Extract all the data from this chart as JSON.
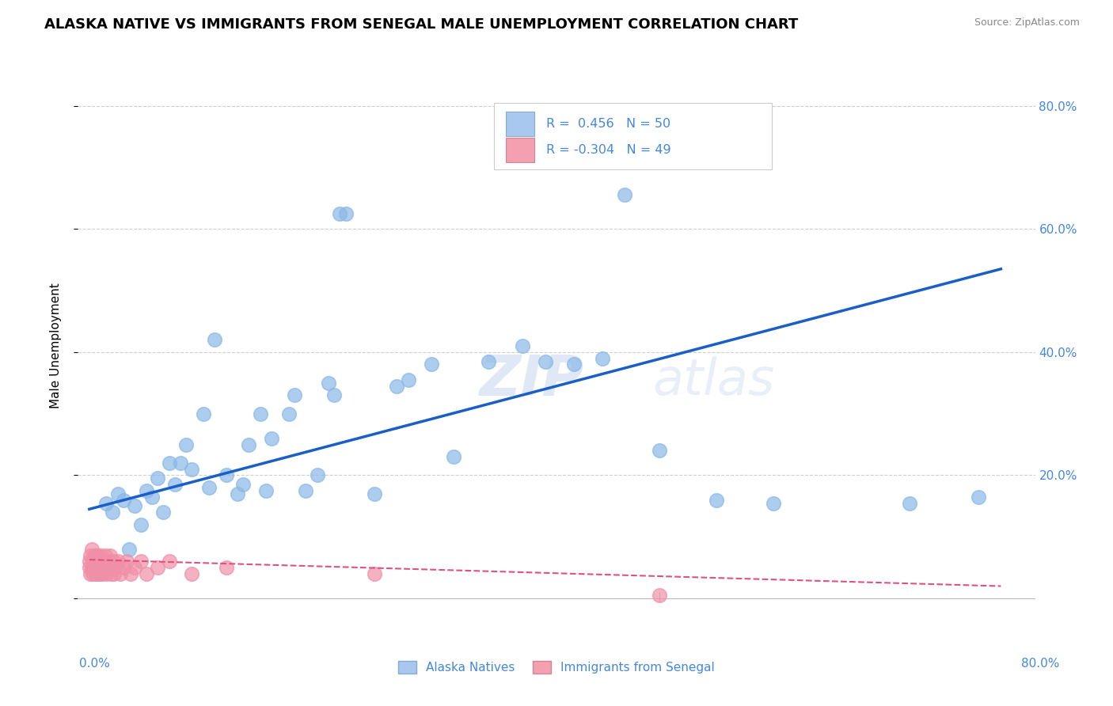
{
  "title": "ALASKA NATIVE VS IMMIGRANTS FROM SENEGAL MALE UNEMPLOYMENT CORRELATION CHART",
  "source": "Source: ZipAtlas.com",
  "ylabel": "Male Unemployment",
  "yaxis_ticks": [
    0.0,
    0.2,
    0.4,
    0.6,
    0.8
  ],
  "yaxis_tick_labels": [
    "",
    "20.0%",
    "40.0%",
    "60.0%",
    "80.0%"
  ],
  "xlim": [
    -0.01,
    0.83
  ],
  "ylim": [
    -0.06,
    0.88
  ],
  "legend_color1": "#a8c8f0",
  "legend_color2": "#f4a0b0",
  "blue_line_color": "#1a5fc8",
  "pink_line_color": "#e05080",
  "scatter_blue_color": "#8ab8e8",
  "scatter_pink_color": "#f090a8",
  "background_color": "#ffffff",
  "grid_color": "#d0d0d0",
  "tick_color": "#4488dd",
  "title_fontsize": 13,
  "axis_fontsize": 11,
  "alaska_x": [
    0.015,
    0.02,
    0.025,
    0.03,
    0.035,
    0.04,
    0.045,
    0.05,
    0.055,
    0.06,
    0.065,
    0.07,
    0.075,
    0.08,
    0.085,
    0.09,
    0.1,
    0.105,
    0.11,
    0.12,
    0.13,
    0.135,
    0.14,
    0.15,
    0.155,
    0.16,
    0.175,
    0.18,
    0.19,
    0.2,
    0.21,
    0.215,
    0.22,
    0.225,
    0.25,
    0.27,
    0.28,
    0.3,
    0.32,
    0.35,
    0.38,
    0.4,
    0.425,
    0.45,
    0.47,
    0.5,
    0.55,
    0.6,
    0.72,
    0.78
  ],
  "alaska_y": [
    0.155,
    0.14,
    0.17,
    0.16,
    0.08,
    0.15,
    0.12,
    0.175,
    0.165,
    0.195,
    0.14,
    0.22,
    0.185,
    0.22,
    0.25,
    0.21,
    0.3,
    0.18,
    0.42,
    0.2,
    0.17,
    0.185,
    0.25,
    0.3,
    0.175,
    0.26,
    0.3,
    0.33,
    0.175,
    0.2,
    0.35,
    0.33,
    0.625,
    0.625,
    0.17,
    0.345,
    0.355,
    0.38,
    0.23,
    0.385,
    0.41,
    0.385,
    0.38,
    0.39,
    0.655,
    0.24,
    0.16,
    0.155,
    0.155,
    0.165
  ],
  "senegal_x": [
    0.0,
    0.0,
    0.001,
    0.001,
    0.002,
    0.002,
    0.003,
    0.003,
    0.004,
    0.004,
    0.005,
    0.005,
    0.006,
    0.006,
    0.007,
    0.007,
    0.008,
    0.008,
    0.009,
    0.009,
    0.01,
    0.01,
    0.011,
    0.012,
    0.013,
    0.014,
    0.015,
    0.016,
    0.017,
    0.018,
    0.019,
    0.02,
    0.021,
    0.022,
    0.023,
    0.025,
    0.027,
    0.03,
    0.033,
    0.036,
    0.04,
    0.045,
    0.05,
    0.06,
    0.07,
    0.09,
    0.12,
    0.25,
    0.5
  ],
  "senegal_y": [
    0.05,
    0.06,
    0.04,
    0.07,
    0.05,
    0.08,
    0.04,
    0.06,
    0.05,
    0.07,
    0.04,
    0.06,
    0.05,
    0.07,
    0.04,
    0.06,
    0.05,
    0.07,
    0.04,
    0.06,
    0.05,
    0.07,
    0.04,
    0.06,
    0.05,
    0.07,
    0.04,
    0.06,
    0.05,
    0.07,
    0.04,
    0.05,
    0.06,
    0.04,
    0.05,
    0.06,
    0.04,
    0.05,
    0.06,
    0.04,
    0.05,
    0.06,
    0.04,
    0.05,
    0.06,
    0.04,
    0.05,
    0.04,
    0.005
  ],
  "blue_line_x": [
    0.0,
    0.8
  ],
  "blue_line_y": [
    0.145,
    0.535
  ],
  "pink_line_x": [
    0.0,
    0.8
  ],
  "pink_line_y": [
    0.063,
    0.02
  ]
}
